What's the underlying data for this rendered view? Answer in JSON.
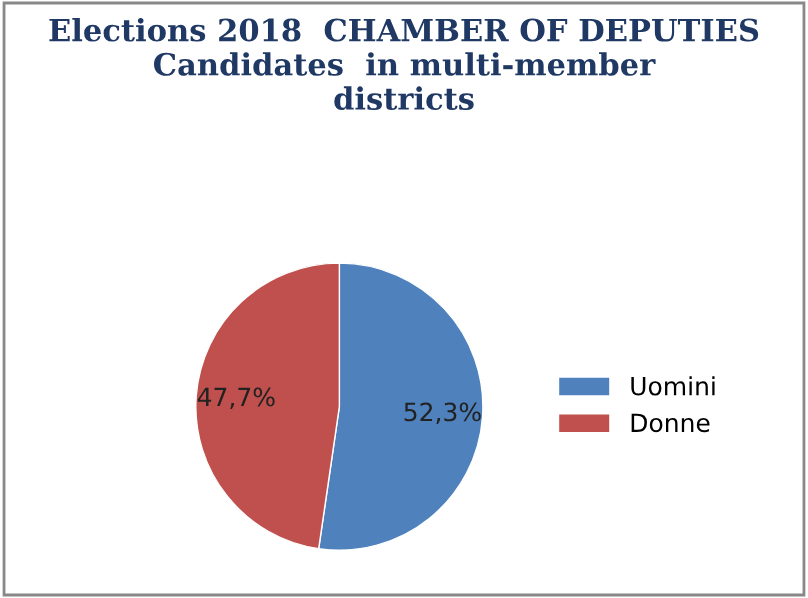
{
  "chart_data": {
    "type": "pie",
    "title": "Elections 2018  CHAMBER OF DEPUTIES\nCandidates  in multi-member\ndistricts",
    "categories": [
      "Uomini",
      "Donne"
    ],
    "values": [
      52.3,
      47.7
    ],
    "value_labels": [
      "52,3%",
      "47,7%"
    ],
    "colors": [
      "#4f81bd",
      "#c0504d"
    ],
    "legend": "right"
  }
}
